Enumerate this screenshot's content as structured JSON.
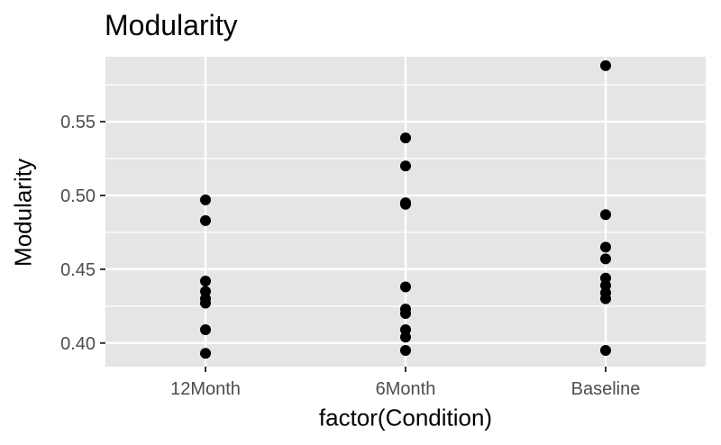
{
  "chart_data": {
    "type": "scatter",
    "title": "Modularity",
    "xlabel": "factor(Condition)",
    "ylabel": "Modularity",
    "categories": [
      "12Month",
      "6Month",
      "Baseline"
    ],
    "ylim": [
      0.384,
      0.594
    ],
    "yticks": [
      0.4,
      0.45,
      0.5,
      0.55
    ],
    "ytick_labels": [
      "0.40",
      "0.45",
      "0.50",
      "0.55"
    ],
    "grid": true,
    "panel_background": "#e5e5e5",
    "grid_color": "#ffffff",
    "point_color": "#000000",
    "series": [
      {
        "category": "12Month",
        "values": [
          0.393,
          0.409,
          0.427,
          0.43,
          0.435,
          0.442,
          0.483,
          0.497
        ]
      },
      {
        "category": "6Month",
        "values": [
          0.395,
          0.404,
          0.409,
          0.42,
          0.423,
          0.438,
          0.494,
          0.495,
          0.52,
          0.539
        ]
      },
      {
        "category": "Baseline",
        "values": [
          0.395,
          0.43,
          0.434,
          0.439,
          0.444,
          0.457,
          0.465,
          0.487,
          0.588
        ]
      }
    ]
  }
}
